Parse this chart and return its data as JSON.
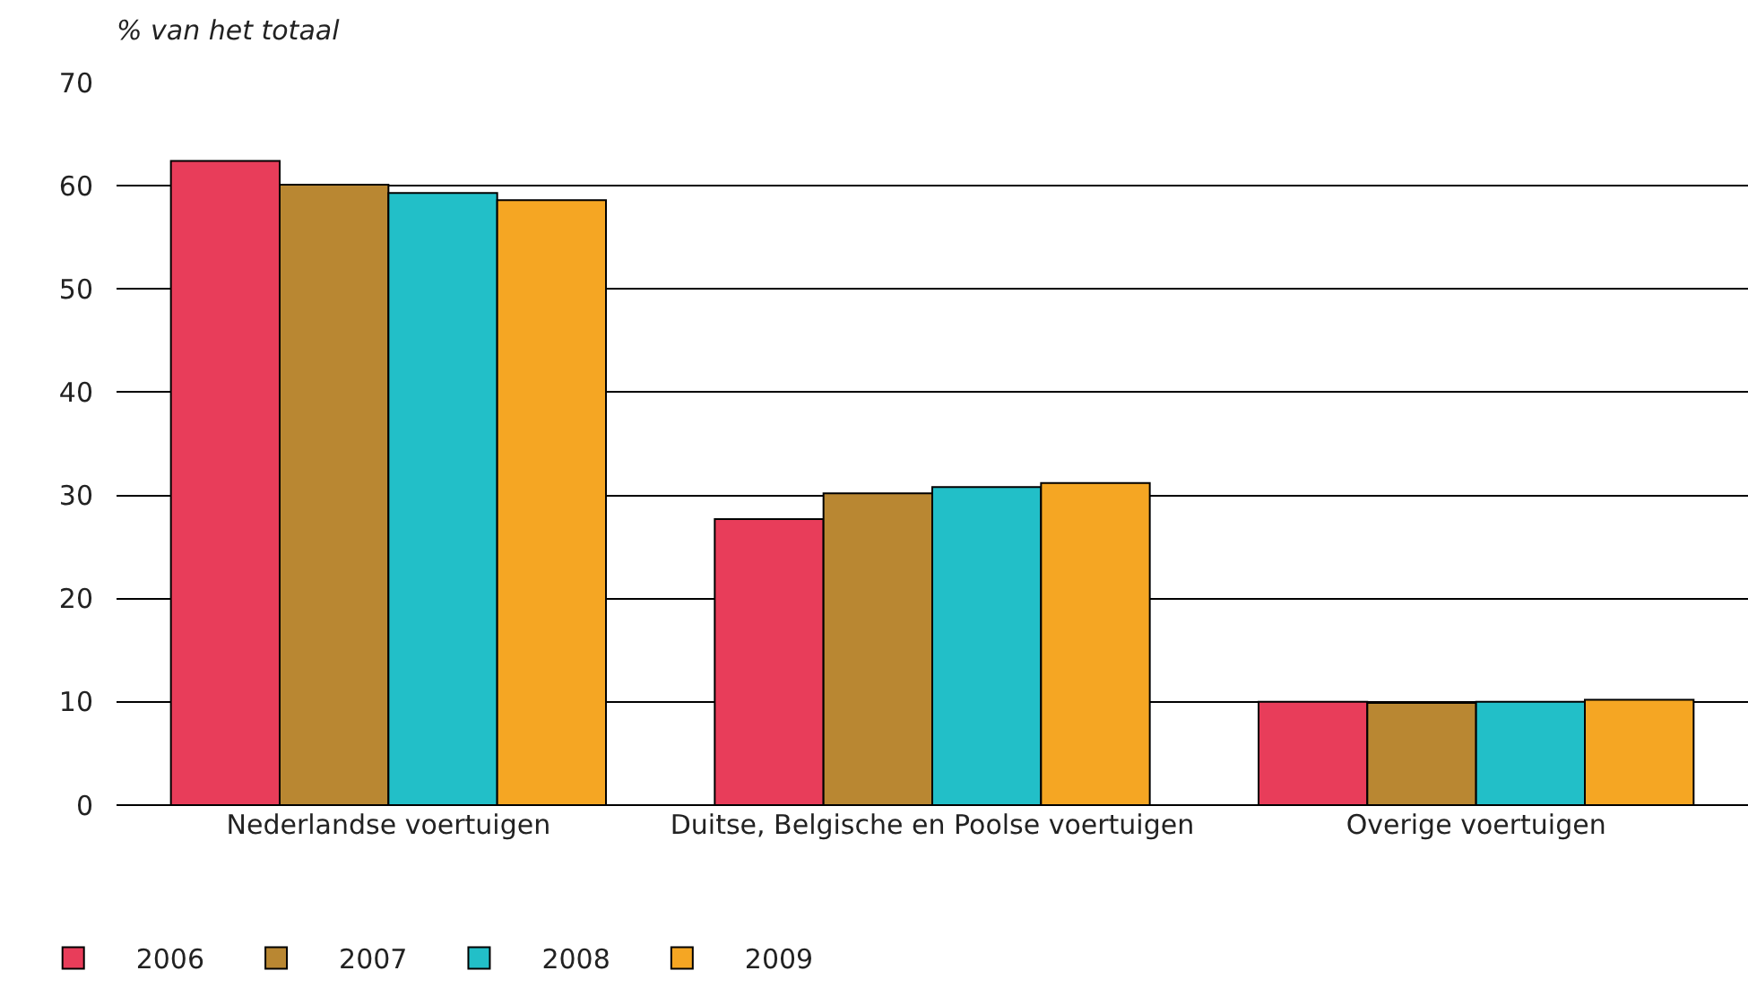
{
  "chart_data": {
    "type": "bar",
    "ylabel": "% van het totaal",
    "categories": [
      "Nederlandse voertuigen",
      "Duitse, Belgische en Poolse voertuigen",
      "Overige voertuigen"
    ],
    "series": [
      {
        "name": "2006",
        "color": "#e83d5a",
        "values": [
          62.4,
          27.7,
          10.0
        ]
      },
      {
        "name": "2007",
        "color": "#b98732",
        "values": [
          60.1,
          30.2,
          9.9
        ]
      },
      {
        "name": "2008",
        "color": "#22bfc8",
        "values": [
          59.3,
          30.8,
          10.0
        ]
      },
      {
        "name": "2009",
        "color": "#f5a623",
        "values": [
          58.6,
          31.2,
          10.2
        ]
      }
    ],
    "ylim": [
      0,
      70
    ],
    "yticks": [
      0,
      10,
      20,
      30,
      40,
      50,
      60,
      70
    ],
    "grid": "y",
    "legend": "bottom left"
  }
}
